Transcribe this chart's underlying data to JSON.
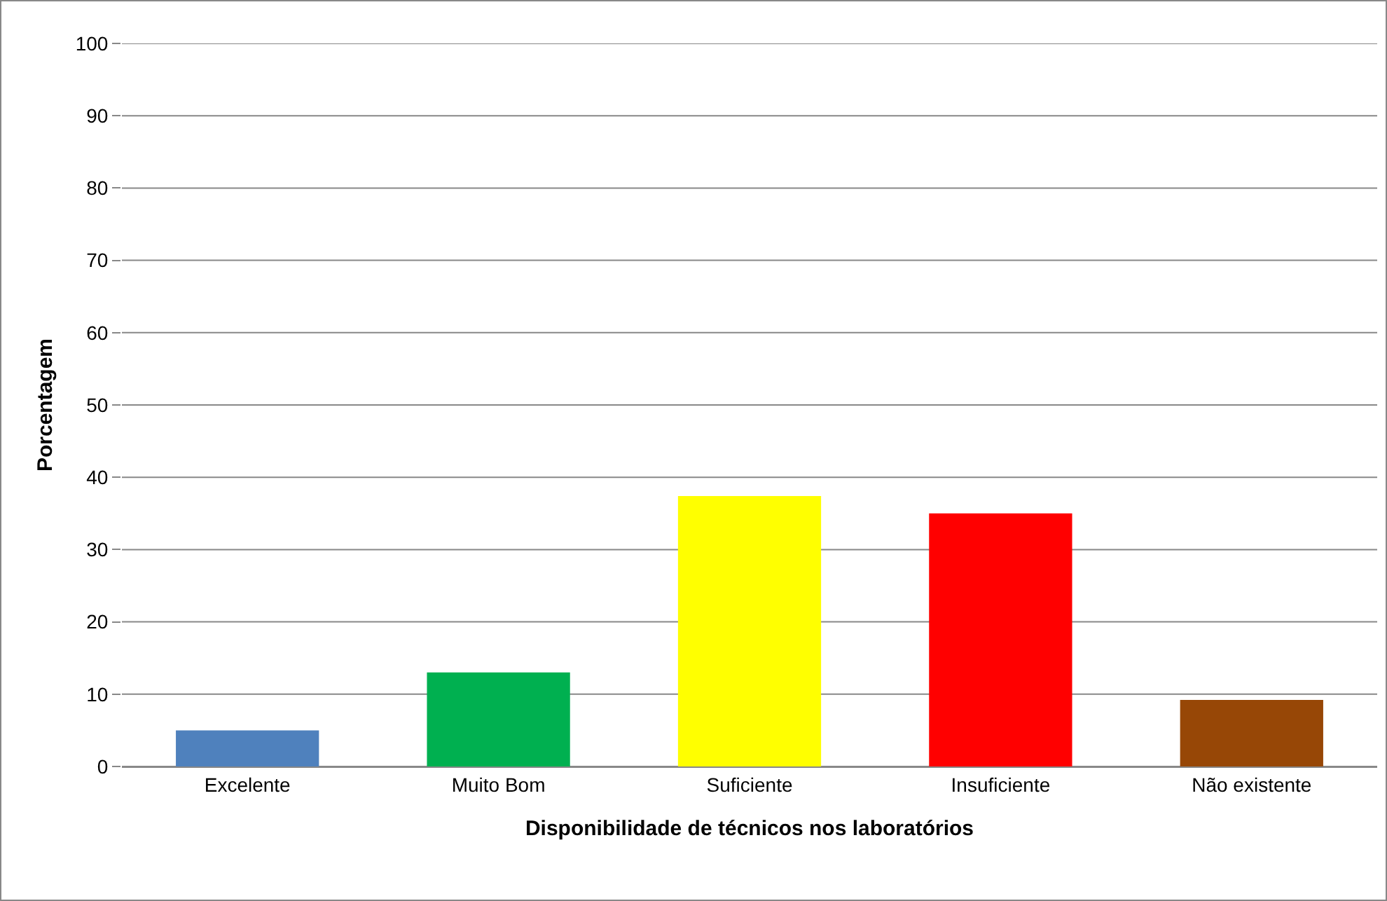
{
  "chart_data": {
    "type": "bar",
    "xlabel": "Disponibilidade de técnicos nos laboratórios",
    "ylabel": "Porcentagem",
    "categories": [
      "Excelente",
      "Muito Bom",
      "Suficiente",
      "Insuficiente",
      "Não existente"
    ],
    "values": [
      5,
      13,
      37.4,
      35,
      9.2
    ],
    "colors": [
      "#4f81bd",
      "#00b050",
      "#ffff00",
      "#ff0000",
      "#974706"
    ],
    "ylim": [
      0,
      100
    ],
    "yticks": [
      0,
      10,
      20,
      30,
      40,
      50,
      60,
      70,
      80,
      90,
      100
    ],
    "grid": "y"
  }
}
